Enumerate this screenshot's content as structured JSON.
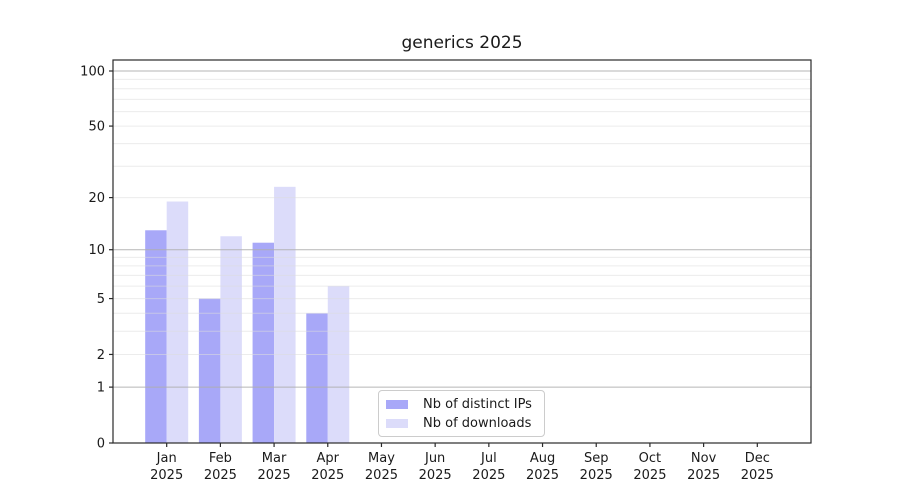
{
  "chart_data": {
    "type": "bar",
    "title": "generics 2025",
    "categories": [
      {
        "month": "Jan",
        "year": "2025"
      },
      {
        "month": "Feb",
        "year": "2025"
      },
      {
        "month": "Mar",
        "year": "2025"
      },
      {
        "month": "Apr",
        "year": "2025"
      },
      {
        "month": "May",
        "year": "2025"
      },
      {
        "month": "Jun",
        "year": "2025"
      },
      {
        "month": "Jul",
        "year": "2025"
      },
      {
        "month": "Aug",
        "year": "2025"
      },
      {
        "month": "Sep",
        "year": "2025"
      },
      {
        "month": "Oct",
        "year": "2025"
      },
      {
        "month": "Nov",
        "year": "2025"
      },
      {
        "month": "Dec",
        "year": "2025"
      }
    ],
    "series": [
      {
        "name": "Nb of distinct IPs",
        "color": "#a8a8f8",
        "values": [
          13,
          5,
          11,
          4,
          null,
          null,
          null,
          null,
          null,
          null,
          null,
          null
        ]
      },
      {
        "name": "Nb of downloads",
        "color": "#dcdcfa",
        "values": [
          19,
          12,
          23,
          6,
          null,
          null,
          null,
          null,
          null,
          null,
          null,
          null
        ]
      }
    ],
    "xlabel": "",
    "ylabel": "",
    "yscale": "log1p",
    "ylim": [
      0,
      115
    ],
    "yticks": [
      0,
      1,
      2,
      5,
      10,
      20,
      50,
      100
    ],
    "grid": {
      "on": true,
      "major_values": [
        1,
        10,
        100
      ],
      "minor_values": [
        2,
        3,
        4,
        5,
        6,
        7,
        8,
        9,
        20,
        30,
        40,
        50,
        60,
        70,
        80,
        90
      ]
    },
    "legend": {
      "location": "lower center",
      "bordered": true
    },
    "colors": {
      "grid_major": "#aeaeae",
      "grid_minor": "#dcdcdc",
      "spine": "#2a2a2a",
      "text": "#1a1a1a",
      "background": "#ffffff"
    }
  }
}
